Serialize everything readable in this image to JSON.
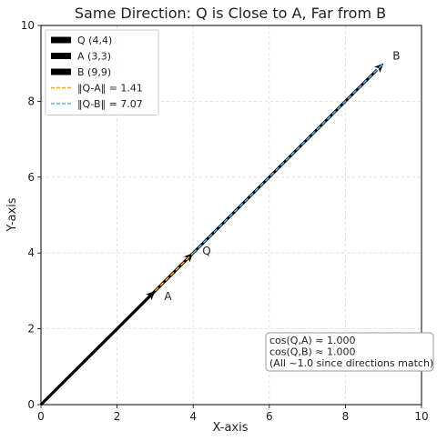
{
  "chart_data": {
    "type": "line",
    "title": "Same Direction: Q is Close to A, Far from B",
    "xlabel": "X-axis",
    "ylabel": "Y-axis",
    "xlim": [
      0,
      10
    ],
    "ylim": [
      0,
      10
    ],
    "xticks": [
      "0",
      "2",
      "4",
      "6",
      "8",
      "10"
    ],
    "yticks": [
      "0",
      "2",
      "4",
      "6",
      "8",
      "10"
    ],
    "grid": true,
    "legend_position": "top-left",
    "vectors": [
      {
        "name": "Q (4,4)",
        "from": [
          0,
          0
        ],
        "to": [
          4,
          4
        ],
        "color": "#000000",
        "label": "Q"
      },
      {
        "name": "A (3,3)",
        "from": [
          0,
          0
        ],
        "to": [
          3,
          3
        ],
        "color": "#000000",
        "label": "A"
      },
      {
        "name": "B (9,9)",
        "from": [
          0,
          0
        ],
        "to": [
          9,
          9
        ],
        "color": "#000000",
        "label": "B"
      }
    ],
    "distances": [
      {
        "name": "‖Q-A‖ = 1.41",
        "from": [
          3,
          3
        ],
        "to": [
          4,
          4
        ],
        "color": "#f5a623",
        "style": "dashed"
      },
      {
        "name": "‖Q-B‖ = 7.07",
        "from": [
          4,
          4
        ],
        "to": [
          9,
          9
        ],
        "color": "#5ab4e6",
        "style": "dashed"
      }
    ],
    "note": [
      "cos(Q,A) ≈ 1.000",
      "cos(Q,B) ≈ 1.000",
      "(All ~1.0 since directions match)"
    ]
  }
}
